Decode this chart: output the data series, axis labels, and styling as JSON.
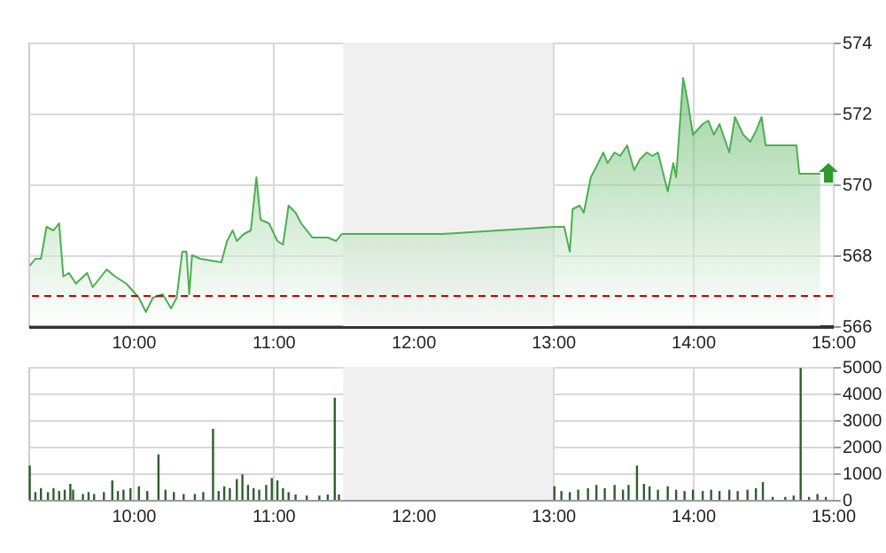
{
  "chart_data": [
    {
      "type": "area",
      "xlim": [
        9.25,
        15
      ],
      "ylim": [
        566,
        574
      ],
      "xticks": [
        {
          "value": 10,
          "label": "10:00"
        },
        {
          "value": 11,
          "label": "11:00"
        },
        {
          "value": 12,
          "label": "12:00"
        },
        {
          "value": 13,
          "label": "13:00"
        },
        {
          "value": 14,
          "label": "14:00"
        },
        {
          "value": 15,
          "label": "15:00"
        }
      ],
      "yticks": [
        566,
        568,
        570,
        572,
        574
      ],
      "grid": true,
      "marker": "none",
      "ref_lines": [
        {
          "axis": "y",
          "value": 566.85,
          "color": "#cc0000",
          "line_style": "dashed"
        }
      ],
      "bands": [
        {
          "axis": "x",
          "from": 11.5,
          "to": 13,
          "color": "#f0f0f0"
        }
      ],
      "series": [
        {
          "color": "#4caf50",
          "x": [
            9.26,
            9.3,
            9.34,
            9.38,
            9.43,
            9.47,
            9.5,
            9.54,
            9.59,
            9.67,
            9.71,
            9.81,
            9.87,
            9.95,
            10.04,
            10.09,
            10.14,
            10.21,
            10.27,
            10.31,
            10.35,
            10.38,
            10.4,
            10.42,
            10.48,
            10.63,
            10.67,
            10.71,
            10.74,
            10.79,
            10.84,
            10.88,
            10.91,
            10.97,
            11.03,
            11.07,
            11.11,
            11.16,
            11.2,
            11.28,
            11.39,
            11.45,
            11.49,
            12.21,
            13.01,
            13.08,
            13.12,
            13.14,
            13.19,
            13.22,
            13.27,
            13.31,
            13.36,
            13.39,
            13.44,
            13.48,
            13.53,
            13.58,
            13.62,
            13.67,
            13.71,
            13.75,
            13.82,
            13.86,
            13.88,
            13.91,
            13.93,
            13.96,
            14.0,
            14.07,
            14.11,
            14.15,
            14.19,
            14.26,
            14.3,
            14.36,
            14.41,
            14.45,
            14.49,
            14.52,
            14.74,
            14.76,
            14.91
          ],
          "values": [
            567.7,
            567.9,
            567.9,
            568.8,
            568.7,
            568.9,
            567.4,
            567.5,
            567.2,
            567.5,
            567.1,
            567.6,
            567.4,
            567.2,
            566.8,
            566.4,
            566.8,
            566.9,
            566.5,
            566.8,
            568.1,
            568.1,
            566.9,
            568.0,
            567.9,
            567.8,
            568.4,
            568.7,
            568.4,
            568.6,
            568.7,
            570.2,
            569.0,
            568.9,
            568.4,
            568.3,
            569.4,
            569.2,
            568.9,
            568.5,
            568.5,
            568.4,
            568.6,
            568.6,
            568.8,
            568.8,
            568.1,
            569.3,
            569.4,
            569.2,
            570.2,
            570.5,
            570.9,
            570.6,
            570.9,
            570.8,
            571.1,
            570.4,
            570.7,
            570.9,
            570.8,
            570.9,
            569.8,
            570.6,
            570.2,
            571.9,
            573.0,
            572.4,
            571.4,
            571.7,
            571.8,
            571.4,
            571.7,
            570.9,
            571.9,
            571.4,
            571.2,
            571.5,
            571.9,
            571.1,
            571.1,
            570.3,
            570.3
          ]
        }
      ]
    },
    {
      "type": "bar",
      "xlim": [
        9.25,
        15
      ],
      "ylim": [
        0,
        5000
      ],
      "xticks": [
        {
          "value": 10,
          "label": "10:00"
        },
        {
          "value": 11,
          "label": "11:00"
        },
        {
          "value": 12,
          "label": "12:00"
        },
        {
          "value": 13,
          "label": "13:00"
        },
        {
          "value": 14,
          "label": "14:00"
        },
        {
          "value": 15,
          "label": "15:00"
        }
      ],
      "yticks": [
        0,
        1000,
        2000,
        3000,
        4000,
        5000
      ],
      "grid": true,
      "bands": [
        {
          "axis": "x",
          "from": 11.5,
          "to": 13,
          "color": "#f0f0f0"
        }
      ],
      "series": [
        {
          "color": "#2e5e2e",
          "x": [
            9.26,
            9.3,
            9.34,
            9.39,
            9.43,
            9.47,
            9.51,
            9.55,
            9.57,
            9.64,
            9.68,
            9.72,
            9.79,
            9.85,
            9.89,
            9.93,
            9.98,
            10.04,
            10.1,
            10.18,
            10.23,
            10.29,
            10.36,
            10.44,
            10.5,
            10.57,
            10.61,
            10.65,
            10.69,
            10.74,
            10.78,
            10.82,
            10.86,
            10.9,
            10.95,
            10.99,
            11.03,
            11.07,
            11.11,
            11.16,
            11.24,
            11.33,
            11.39,
            11.44,
            11.47,
            13.01,
            13.06,
            13.12,
            13.18,
            13.25,
            13.31,
            13.37,
            13.44,
            13.5,
            13.54,
            13.6,
            13.65,
            13.69,
            13.75,
            13.82,
            13.88,
            13.94,
            14.0,
            14.07,
            14.13,
            14.19,
            14.26,
            14.32,
            14.39,
            14.45,
            14.5,
            14.57,
            14.66,
            14.72,
            14.77,
            14.83,
            14.89,
            14.95
          ],
          "values": [
            1290,
            290,
            440,
            290,
            440,
            330,
            380,
            600,
            380,
            220,
            290,
            220,
            290,
            730,
            330,
            380,
            440,
            510,
            330,
            1710,
            380,
            290,
            220,
            220,
            290,
            2670,
            330,
            510,
            440,
            780,
            960,
            560,
            440,
            380,
            560,
            820,
            730,
            440,
            290,
            200,
            160,
            160,
            200,
            3840,
            200,
            510,
            330,
            290,
            380,
            440,
            560,
            440,
            560,
            380,
            560,
            1290,
            600,
            510,
            380,
            510,
            380,
            330,
            380,
            330,
            380,
            330,
            380,
            330,
            380,
            440,
            670,
            110,
            110,
            160,
            4960,
            110,
            220,
            110
          ]
        }
      ]
    }
  ]
}
